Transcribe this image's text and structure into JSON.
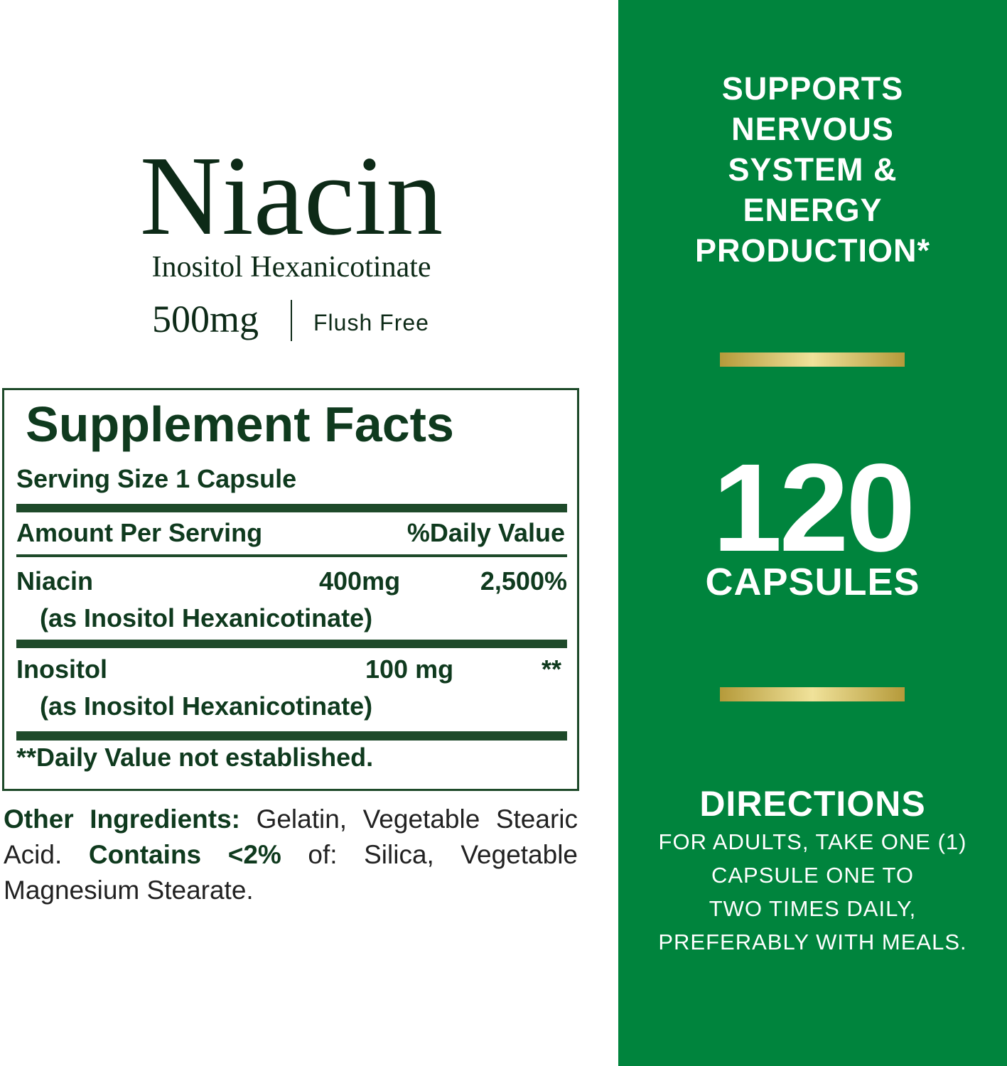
{
  "product": {
    "name": "Niacin",
    "form": "Inositol Hexanicotinate",
    "strength": "500mg",
    "feature": "Flush Free"
  },
  "supplement_facts": {
    "title": "Supplement Facts",
    "serving_size": "Serving Size 1 Capsule",
    "header": [
      "Amount Per Serving",
      "%Daily Value"
    ],
    "rows": [
      {
        "name": "Niacin",
        "source": "(as Inositol Hexanicotinate)",
        "amount": "400mg",
        "daily_value": "2,500%"
      },
      {
        "name": "Inositol",
        "source": "(as Inositol Hexanicotinate)",
        "amount": "100 mg",
        "daily_value": "**"
      }
    ],
    "footnote": "**Daily Value not established."
  },
  "other_ingredients": {
    "label": "Other Ingredients:",
    "text": "Gelatin, Vegetable Stearic Acid.",
    "contains_label": "Contains <2%",
    "contains_text": "of: Silica, Vegetable Magnesium Stearate."
  },
  "benefit": {
    "lines": [
      "SUPPORTS",
      "NERVOUS",
      "SYSTEM &",
      "ENERGY",
      "PRODUCTION*"
    ]
  },
  "count": {
    "number": 120,
    "unit": "CAPSULES"
  },
  "directions": {
    "title": "DIRECTIONS",
    "lines": [
      "FOR ADULTS, TAKE ONE (1)",
      "CAPSULE ONE TO",
      "TWO TIMES DAILY,",
      "PREFERABLY WITH MEALS."
    ]
  }
}
